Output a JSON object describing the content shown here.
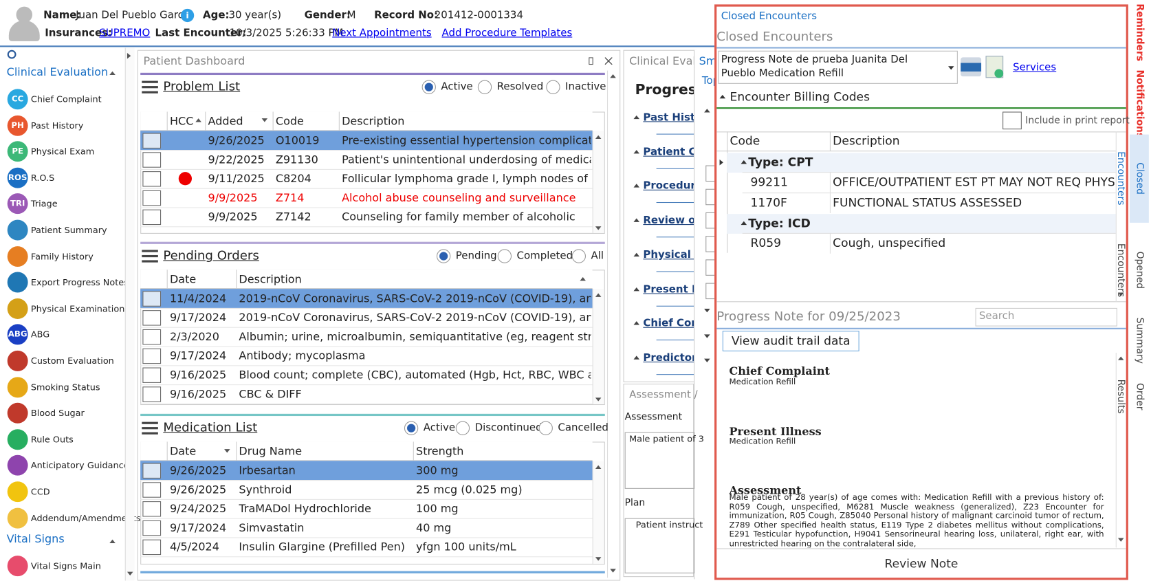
{
  "header": {
    "name_label": "Name:",
    "name": "Juan Del Pueblo Garcia",
    "info_icon": "i",
    "age_label": "Age:",
    "age": "30 year(s)",
    "gender_label": "Gender:",
    "gender": "M",
    "record_label": "Record No:",
    "record": "201412-0001334",
    "insurances_label": "Insurances:",
    "insurance": "SUPREMO",
    "last_encounter_label": "Last Encounter:",
    "last_encounter": "10/3/2025 5:26:33 PM",
    "next_appointments": "Next Appointments",
    "add_templates": "Add Procedure Templates"
  },
  "sidebar": {
    "section1": "Clinical Evaluation",
    "items": [
      {
        "icon": "CC",
        "label": "Chief Complaint"
      },
      {
        "icon": "PH",
        "label": "Past History"
      },
      {
        "icon": "PE",
        "label": "Physical Exam"
      },
      {
        "icon": "ROS",
        "label": "R.O.S"
      },
      {
        "icon": "TRI",
        "label": "Triage"
      },
      {
        "label": "Patient Summary"
      },
      {
        "label": "Family History"
      },
      {
        "label": "Export Progress Notes"
      },
      {
        "label": "Physical Examination"
      },
      {
        "icon": "ABG",
        "label": "ABG"
      },
      {
        "label": "Custom Evaluation"
      },
      {
        "label": "Smoking Status"
      },
      {
        "label": "Blood Sugar"
      },
      {
        "label": "Rule Outs"
      },
      {
        "label": "Anticipatory Guidance"
      },
      {
        "label": "CCD"
      },
      {
        "label": "Addendum/Amendments"
      }
    ],
    "section2": "Vital Signs",
    "items2": [
      {
        "label": "Vital Signs Main"
      }
    ]
  },
  "dashboard": {
    "title": "Patient Dashboard",
    "problem_list": {
      "title": "Problem List",
      "filters": [
        "Active",
        "Resolved",
        "Inactive"
      ],
      "columns": [
        "HCC",
        "Added",
        "Code",
        "Description"
      ],
      "rows": [
        {
          "hcc": false,
          "added": "9/26/2025",
          "code": "O10019",
          "description": "Pre-existing essential hypertension complicating pregnancy",
          "alert": false
        },
        {
          "hcc": false,
          "added": "9/22/2025",
          "code": "Z91130",
          "description": "Patient's unintentional underdosing of medication regimen",
          "alert": false
        },
        {
          "hcc": true,
          "added": "9/11/2025",
          "code": "C8204",
          "description": "Follicular lymphoma grade I, lymph nodes of axilla and upper limb",
          "alert": false
        },
        {
          "hcc": false,
          "added": "9/9/2025",
          "code": "Z714",
          "description": "Alcohol abuse counseling and surveillance",
          "alert": true
        },
        {
          "hcc": false,
          "added": "9/9/2025",
          "code": "Z7142",
          "description": "Counseling for family member of alcoholic",
          "alert": false
        }
      ]
    },
    "pending_orders": {
      "title": "Pending Orders",
      "filters": [
        "Pending",
        "Completed",
        "All"
      ],
      "columns": [
        "Date",
        "Description"
      ],
      "rows": [
        {
          "date": "11/4/2024",
          "description": "2019-nCoV Coronavirus, SARS-CoV-2 2019-nCoV (COVID-19), any tec..."
        },
        {
          "date": "9/17/2024",
          "description": "2019-nCoV Coronavirus, SARS-CoV-2 2019-nCoV (COVID-19), any tec..."
        },
        {
          "date": "2/3/2020",
          "description": "Albumin; urine, microalbumin, semiquantitative (eg, reagent strip assay)"
        },
        {
          "date": "9/17/2024",
          "description": "Antibody; mycoplasma"
        },
        {
          "date": "9/16/2025",
          "description": "Blood count; complete (CBC), automated (Hgb, Hct, RBC, WBC and pla..."
        },
        {
          "date": "9/16/2025",
          "description": "CBC & DIFF"
        }
      ]
    },
    "medication_list": {
      "title": "Medication List",
      "filters": [
        "Active",
        "Discontinued",
        "Cancelled"
      ],
      "columns": [
        "Date",
        "Drug Name",
        "Strength"
      ],
      "rows": [
        {
          "date": "9/26/2025",
          "drug": "Irbesartan",
          "strength": "300 mg"
        },
        {
          "date": "9/26/2025",
          "drug": "Synthroid",
          "strength": "25 mcg (0.025 mg)"
        },
        {
          "date": "9/24/2025",
          "drug": "TraMADol Hydrochloride",
          "strength": "100 mg"
        },
        {
          "date": "9/17/2024",
          "drug": "Simvastatin",
          "strength": "40 mg"
        },
        {
          "date": "4/5/2024",
          "drug": "Insulin Glargine (Prefilled Pen)",
          "strength": "yfgn 100 units/mL"
        }
      ]
    }
  },
  "middle": {
    "title": "Clinical Evalu",
    "tab": "Sm",
    "top": "Top",
    "heading": "Progress",
    "links": [
      "Past Histo",
      "Patient Co",
      "Procedure",
      "Review of",
      "Physical E",
      "Present Ill",
      "Chief Com",
      "Predictors"
    ],
    "assessment_title": "Assessment /",
    "assessment_label": "Assessment",
    "assessment_text": "Male patient of 3",
    "plan_label": "Plan",
    "plan_text": "Patient instruct"
  },
  "closed": {
    "link": "Closed Encounters",
    "title": "Closed Encounters",
    "encounter": "Progress Note de prueba Juanita Del Pueblo Medication Refill",
    "services": "Services",
    "billing_title": "Encounter Billing Codes",
    "include_print": "Include in print report",
    "columns": [
      "Code",
      "Description"
    ],
    "groups": [
      {
        "type": "Type: CPT",
        "rows": [
          {
            "code": "99211",
            "description": "OFFICE/OUTPATIENT EST PT MAY NOT REQ PHYS..."
          },
          {
            "code": "1170F",
            "description": "FUNCTIONAL STATUS ASSESSED"
          }
        ]
      },
      {
        "type": "Type: ICD",
        "rows": [
          {
            "code": "R059",
            "description": "Cough, unspecified"
          }
        ]
      }
    ],
    "note_title": "Progress Note for 09/25/2023",
    "search": "Search",
    "audit": "View audit trail data",
    "sections": [
      {
        "title": "Chief Complaint",
        "text": "Medication Refill"
      },
      {
        "title": "Present Illness",
        "text": "Medication Refill"
      },
      {
        "title": "Assessment",
        "text": "Male patient of 28 year(s) of age comes with: Medication Refill with a previous history of: R059 Cough, unspecified, M6281 Muscle weakness (generalized), Z23 Encounter for immunization, R05 Cough, Z85040 Personal history of malignant carcinoid tumor of rectum, Z789 Other specified health status, E119 Type 2 diabetes mellitus without complications, E291 Testicular hypofunction, H9041 Sensorineural hearing loss, unilateral, right ear, with unrestricted hearing on the contralateral side,"
      }
    ],
    "review": "Review Note"
  },
  "right_tabs": [
    "Reminders",
    "Notifications",
    "Closed Encounters",
    "Opened Encounters",
    "Summary",
    "Order Results"
  ]
}
